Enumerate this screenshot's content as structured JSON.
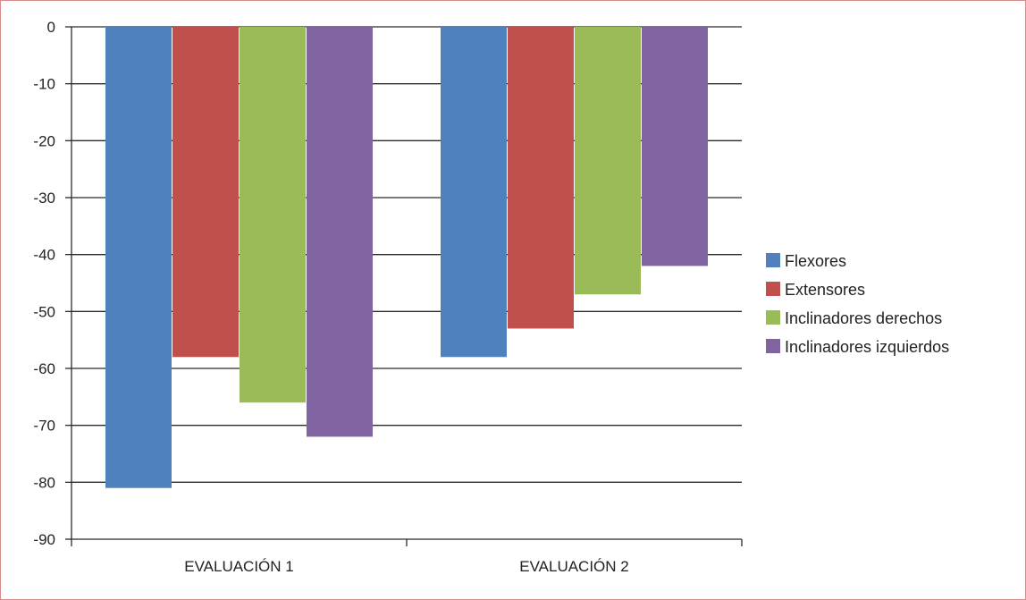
{
  "chart_data": {
    "type": "bar",
    "title": "",
    "xlabel": "",
    "ylabel": "",
    "categories": [
      "EVALUACIÓN 1",
      "EVALUACIÓN 2"
    ],
    "series": [
      {
        "name": "Flexores",
        "color": "#4f81bd",
        "values": [
          -81,
          -58
        ]
      },
      {
        "name": "Extensores",
        "color": "#c0504d",
        "values": [
          -58,
          -53
        ]
      },
      {
        "name": "Inclinadores derechos",
        "color": "#9bbb59",
        "values": [
          -66,
          -47
        ]
      },
      {
        "name": "Inclinadores izquierdos",
        "color": "#8064a2",
        "values": [
          -72,
          -42
        ]
      }
    ],
    "ylim": [
      -90,
      0
    ],
    "yticks": [
      0,
      -10,
      -20,
      -30,
      -40,
      -50,
      -60,
      -70,
      -80,
      -90
    ],
    "ytick_labels": [
      "0",
      "-10",
      "-20",
      "-30",
      "-40",
      "-50",
      "-60",
      "-70",
      "-80",
      "-90"
    ],
    "grid": true,
    "legend_position": "right"
  }
}
